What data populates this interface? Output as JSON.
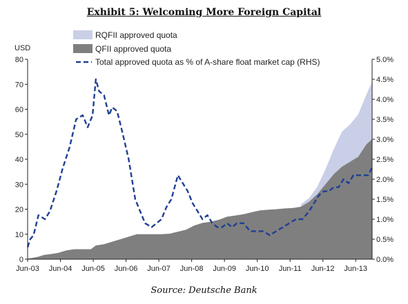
{
  "title": "Exhibit 5: Welcoming More Foreign Capital",
  "source": "Source: Deutsche Bank",
  "colors": {
    "rqfii": "#c9cfe6",
    "qfii": "#7f7f7f",
    "line": "#1f3f93",
    "axis": "#222222"
  },
  "chart_data": {
    "type": "area",
    "y_left_unit": "USD",
    "ylim_left": [
      0,
      80
    ],
    "yticks_left": [
      0,
      10,
      20,
      30,
      40,
      50,
      60,
      70,
      80
    ],
    "ylim_right": [
      0,
      5.0
    ],
    "yticks_right": [
      "0.0%",
      "0.5%",
      "1.0%",
      "1.5%",
      "2.0%",
      "2.5%",
      "3.0%",
      "3.5%",
      "4.0%",
      "4.5%",
      "5.0%"
    ],
    "xlim": [
      2003.42,
      2013.92
    ],
    "xticks": [
      {
        "x": 2003.42,
        "label": "Jun-03"
      },
      {
        "x": 2004.42,
        "label": "Jun-04"
      },
      {
        "x": 2005.42,
        "label": "Jun-05"
      },
      {
        "x": 2006.42,
        "label": "Jun-06"
      },
      {
        "x": 2007.42,
        "label": "Jun-07"
      },
      {
        "x": 2008.42,
        "label": "Jun-08"
      },
      {
        "x": 2009.42,
        "label": "Jun-09"
      },
      {
        "x": 2010.42,
        "label": "Jun-10"
      },
      {
        "x": 2011.42,
        "label": "Jun-11"
      },
      {
        "x": 2012.42,
        "label": "Jun-12"
      },
      {
        "x": 2013.42,
        "label": "Jun-13"
      }
    ],
    "legend": [
      {
        "key": "rqfii",
        "label": "RQFII approved quota"
      },
      {
        "key": "qfii",
        "label": "QFII approved quota"
      },
      {
        "key": "pct",
        "label": "Total approved quota as % of A-share float market cap (RHS)"
      }
    ],
    "series": [
      {
        "name": "QFII approved quota",
        "axis": "left",
        "x": [
          2003.42,
          2003.55,
          2003.75,
          2003.92,
          2004.1,
          2004.35,
          2004.6,
          2004.85,
          2005.1,
          2005.35,
          2005.5,
          2005.75,
          2006.0,
          2006.25,
          2006.5,
          2006.75,
          2007.0,
          2007.25,
          2007.5,
          2007.75,
          2008.0,
          2008.25,
          2008.5,
          2008.75,
          2009.0,
          2009.25,
          2009.5,
          2009.75,
          2010.0,
          2010.25,
          2010.5,
          2010.75,
          2011.0,
          2011.25,
          2011.5,
          2011.75,
          2012.0,
          2012.25,
          2012.5,
          2012.75,
          2013.0,
          2013.25,
          2013.5,
          2013.75,
          2013.92
        ],
        "values": [
          0.2,
          0.5,
          1.0,
          1.7,
          2.0,
          2.5,
          3.5,
          4.0,
          4.0,
          4.0,
          5.5,
          6.0,
          7.0,
          8.0,
          9.0,
          10.0,
          10.0,
          10.0,
          10.0,
          10.2,
          11.0,
          11.8,
          13.5,
          14.5,
          15.0,
          15.8,
          17.0,
          17.5,
          18.0,
          18.8,
          19.5,
          19.8,
          20.0,
          20.3,
          20.5,
          21.0,
          23.0,
          26.0,
          30.0,
          34.0,
          37.0,
          39.0,
          41.0,
          46.0,
          48.0
        ]
      },
      {
        "name": "RQFII approved quota",
        "axis": "left",
        "note": "stacked on top of QFII; values are the total approved quota",
        "x": [
          2011.75,
          2012.0,
          2012.25,
          2012.5,
          2012.75,
          2013.0,
          2013.25,
          2013.5,
          2013.75,
          2013.92
        ],
        "values": [
          22.0,
          24.5,
          29.0,
          36.0,
          44.0,
          51.0,
          54.0,
          58.0,
          66.0,
          71.0
        ]
      },
      {
        "name": "Total approved quota as % of A-share float market cap (RHS)",
        "axis": "right",
        "x": [
          2003.42,
          2003.5,
          2003.6,
          2003.75,
          2003.95,
          2004.1,
          2004.3,
          2004.5,
          2004.7,
          2004.9,
          2005.1,
          2005.25,
          2005.4,
          2005.5,
          2005.6,
          2005.75,
          2005.9,
          2006.0,
          2006.15,
          2006.3,
          2006.5,
          2006.7,
          2006.85,
          2007.0,
          2007.2,
          2007.35,
          2007.5,
          2007.65,
          2007.8,
          2008.0,
          2008.15,
          2008.3,
          2008.45,
          2008.6,
          2008.75,
          2008.9,
          2009.05,
          2009.2,
          2009.35,
          2009.5,
          2009.65,
          2009.8,
          2010.0,
          2010.2,
          2010.4,
          2010.6,
          2010.8,
          2011.0,
          2011.2,
          2011.4,
          2011.6,
          2011.8,
          2012.0,
          2012.15,
          2012.3,
          2012.45,
          2012.6,
          2012.75,
          2012.9,
          2013.05,
          2013.2,
          2013.35,
          2013.5,
          2013.65,
          2013.8,
          2013.92
        ],
        "values": [
          0.3,
          0.5,
          0.6,
          1.1,
          1.0,
          1.2,
          1.7,
          2.3,
          2.8,
          3.5,
          3.6,
          3.3,
          3.6,
          4.5,
          4.2,
          4.1,
          3.6,
          3.8,
          3.7,
          3.2,
          2.5,
          1.5,
          1.2,
          0.9,
          0.8,
          0.9,
          1.0,
          1.3,
          1.5,
          2.1,
          1.9,
          1.7,
          1.4,
          1.2,
          1.0,
          1.1,
          0.9,
          0.8,
          0.8,
          0.9,
          0.8,
          0.9,
          0.9,
          0.7,
          0.7,
          0.7,
          0.6,
          0.7,
          0.8,
          0.9,
          1.0,
          1.0,
          1.2,
          1.4,
          1.6,
          1.7,
          1.7,
          1.8,
          1.8,
          2.0,
          1.9,
          2.1,
          2.1,
          2.1,
          2.1,
          2.3
        ]
      }
    ]
  }
}
